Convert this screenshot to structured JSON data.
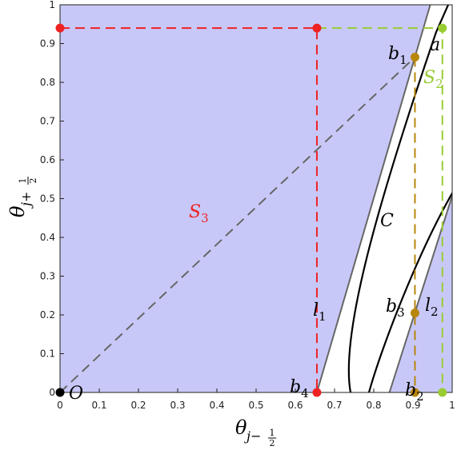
{
  "chart_data": {
    "type": "scatter",
    "xlim": [
      0,
      1
    ],
    "ylim": [
      0,
      1
    ],
    "xticks": [
      0,
      0.1,
      0.2,
      0.3,
      0.4,
      0.5,
      0.6,
      0.7,
      0.8,
      0.9,
      1
    ],
    "yticks": [
      0,
      0.1,
      0.2,
      0.3,
      0.4,
      0.5,
      0.6,
      0.7,
      0.8,
      0.9,
      1
    ],
    "xlabel": {
      "symbol": "θ",
      "sub": "j−",
      "num": "1",
      "den": "2"
    },
    "ylabel": {
      "symbol": "θ",
      "sub": "j+",
      "num": "1",
      "den": "2"
    },
    "shade_color": "#c8c8f8",
    "lines": [
      {
        "color": "#666666",
        "x": [
          0.655,
          0.944
        ],
        "y": [
          0,
          1
        ]
      },
      {
        "color": "#666666",
        "x": [
          0.84,
          1
        ],
        "y": [
          0,
          0.507
        ]
      }
    ],
    "segments": [
      {
        "color": "#ee2222",
        "x": [
          0,
          0.655,
          0.655
        ],
        "y": [
          0.94,
          0.94,
          0
        ]
      },
      {
        "color": "#99cc33",
        "x": [
          0.655,
          0.975,
          0.975
        ],
        "y": [
          0.94,
          0.94,
          0
        ]
      },
      {
        "color": "#b8860b",
        "x": [
          0.905,
          0.905
        ],
        "y": [
          0.865,
          0
        ]
      },
      {
        "color": "#666666",
        "x": [
          0,
          0.905
        ],
        "y": [
          0,
          0.865
        ]
      }
    ],
    "points": [
      {
        "color": "#000000",
        "x": 0,
        "y": 0
      },
      {
        "color": "#ee2222",
        "x": 0,
        "y": 0.94
      },
      {
        "color": "#ee2222",
        "x": 0.655,
        "y": 0.94
      },
      {
        "color": "#ee2222",
        "x": 0.655,
        "y": 0
      },
      {
        "color": "#99cc33",
        "x": 0.975,
        "y": 0.94
      },
      {
        "color": "#99cc33",
        "x": 0.975,
        "y": 0
      },
      {
        "color": "#b8860b",
        "x": 0.905,
        "y": 0.865
      },
      {
        "color": "#b8860b",
        "x": 0.905,
        "y": 0.205
      },
      {
        "color": "#b8860b",
        "x": 0.905,
        "y": 0
      }
    ],
    "labels": [
      {
        "text": "O",
        "color": "#000000"
      },
      {
        "text": "a",
        "color": "#000000"
      },
      {
        "text": "b",
        "sub": "1",
        "color": "#000000"
      },
      {
        "text": "S",
        "sub": "2",
        "color": "#99cc33"
      },
      {
        "text": "S",
        "sub": "3",
        "color": "#ee2222"
      },
      {
        "text": "C",
        "color": "#000000"
      },
      {
        "text": "l",
        "sub": "1",
        "color": "#000000"
      },
      {
        "text": "b",
        "sub": "3",
        "color": "#000000"
      },
      {
        "text": "l",
        "sub": "2",
        "color": "#000000"
      },
      {
        "text": "b",
        "sub": "4",
        "color": "#000000"
      },
      {
        "text": "b",
        "sub": "2",
        "color": "#000000"
      }
    ]
  }
}
